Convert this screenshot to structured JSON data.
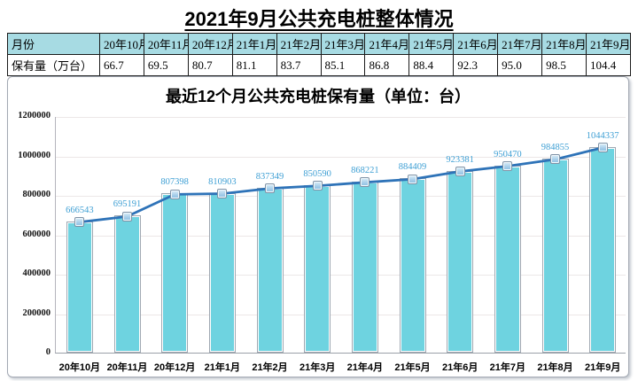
{
  "page_title": "2021年9月公共充电桩整体情况",
  "table": {
    "month_header": "月份",
    "value_header": "保有量（万台）",
    "months": [
      "20年10月",
      "20年11月",
      "20年12月",
      "21年1月",
      "21年2月",
      "21年3月",
      "21年4月",
      "21年5月",
      "21年6月",
      "21年7月",
      "21年8月",
      "21年9月"
    ],
    "values": [
      "66.7",
      "69.5",
      "80.7",
      "81.1",
      "83.7",
      "85.1",
      "86.8",
      "88.4",
      "92.3",
      "95.0",
      "98.5",
      "104.4"
    ],
    "header_bg": "#a7dbe3"
  },
  "chart_data": {
    "type": "bar",
    "overlay": "line-with-square-markers-on-same-values",
    "title": "最近12个月公共充电桩保有量（单位：台）",
    "categories": [
      "20年10月",
      "20年11月",
      "20年12月",
      "21年1月",
      "21年2月",
      "21年3月",
      "21年4月",
      "21年5月",
      "21年6月",
      "21年7月",
      "21年8月",
      "21年9月"
    ],
    "values": [
      666543,
      695191,
      807398,
      810903,
      837349,
      850590,
      868221,
      884409,
      923381,
      950470,
      984855,
      1044337
    ],
    "ylim": [
      0,
      1200000
    ],
    "yticks": [
      0,
      200000,
      400000,
      600000,
      800000,
      1000000,
      1200000
    ],
    "grid": true,
    "legend": "none",
    "bar_color": "#6ed3e0",
    "line_color": "#2e73b8",
    "marker_fill": "#a5cde9",
    "data_label_color": "#3e9fd4"
  }
}
